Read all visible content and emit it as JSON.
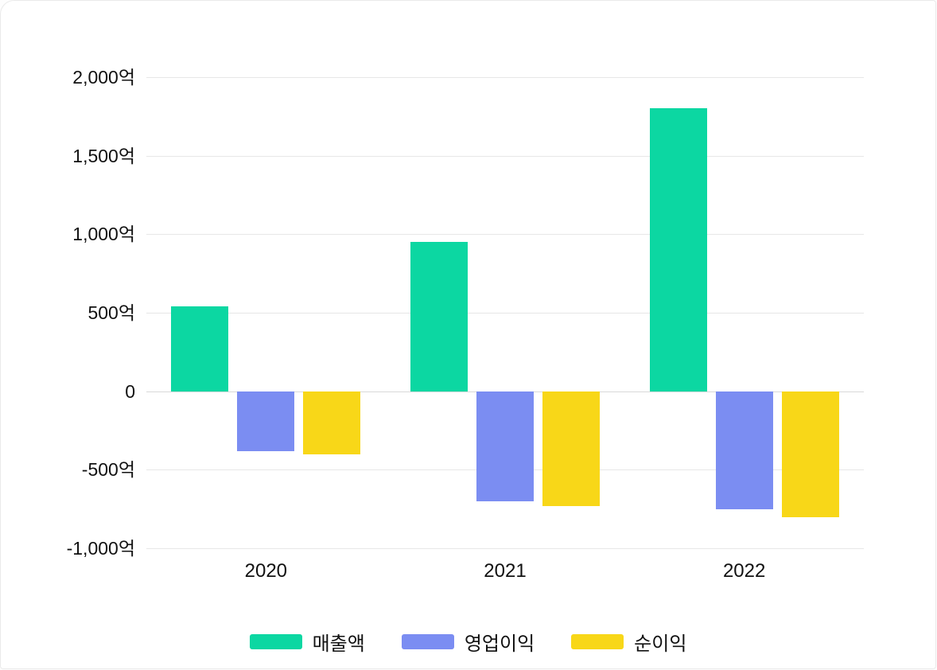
{
  "chart_data": {
    "type": "bar",
    "title": "",
    "xlabel": "",
    "ylabel": "",
    "unit": "억",
    "categories": [
      "2020",
      "2021",
      "2022"
    ],
    "series": [
      {
        "key": "revenue",
        "name": "매출액",
        "color": "#0cd7a2",
        "values": [
          540,
          950,
          1800
        ]
      },
      {
        "key": "operating-profit",
        "name": "영업이익",
        "color": "#7b8df2",
        "values": [
          -380,
          -700,
          -750
        ]
      },
      {
        "key": "net-profit",
        "name": "순이익",
        "color": "#f8d718",
        "values": [
          -400,
          -730,
          -800
        ]
      }
    ],
    "ylim": [
      -1000,
      2000
    ],
    "y_ticks": [
      {
        "value": 2000,
        "label": "2,000억"
      },
      {
        "value": 1500,
        "label": "1,500억"
      },
      {
        "value": 1000,
        "label": "1,000억"
      },
      {
        "value": 500,
        "label": "500억"
      },
      {
        "value": 0,
        "label": "0"
      },
      {
        "value": -500,
        "label": "-500억"
      },
      {
        "value": -1000,
        "label": "-1,000억"
      }
    ],
    "grid": true,
    "legend_position": "bottom"
  }
}
